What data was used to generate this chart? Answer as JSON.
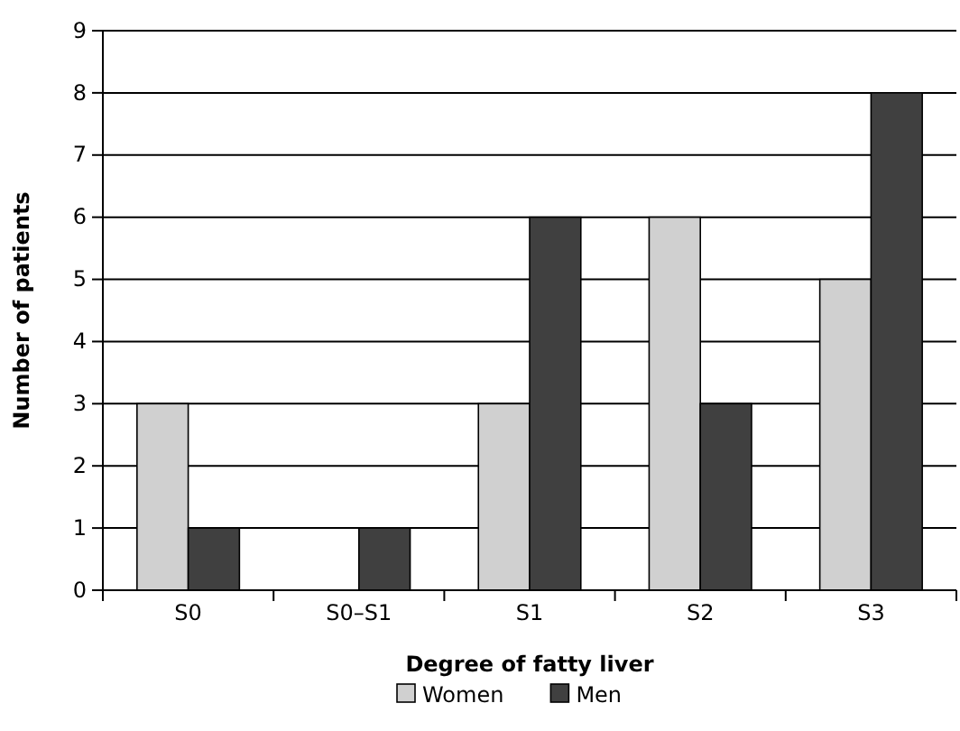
{
  "chart_data": {
    "type": "bar",
    "xlabel": "Degree of fatty liver",
    "ylabel": "Number of patients",
    "categories": [
      "S0",
      "S0–S1",
      "S1",
      "S2",
      "S3"
    ],
    "series": [
      {
        "name": "Women",
        "color": "#d0d0d0",
        "values": [
          3,
          0,
          3,
          6,
          5
        ]
      },
      {
        "name": "Men",
        "color": "#404040",
        "values": [
          1,
          1,
          6,
          3,
          8
        ]
      }
    ],
    "ylim": [
      0,
      9
    ],
    "yticks": [
      0,
      1,
      2,
      3,
      4,
      5,
      6,
      7,
      8,
      9
    ],
    "grid": "y",
    "legend": "bottom"
  }
}
